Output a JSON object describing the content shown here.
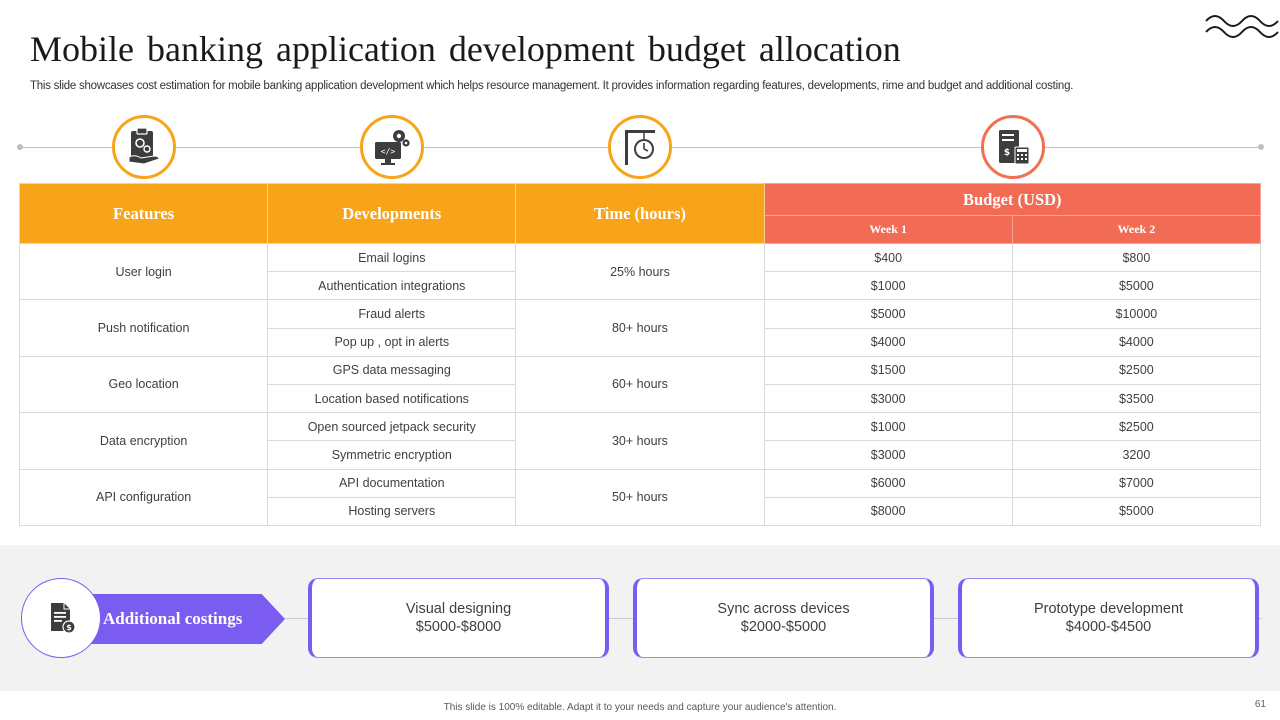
{
  "header": {
    "title": "Mobile banking application development budget allocation",
    "subtitle": "This slide showcases cost estimation for mobile banking application development which helps resource management. It provides information regarding features, developments, rime and budget and additional costing."
  },
  "table": {
    "headers": {
      "features": "Features",
      "developments": "Developments",
      "time": "Time (hours)",
      "budget": "Budget (USD)",
      "week1": "Week 1",
      "week2": "Week 2"
    },
    "groups": [
      {
        "feature": "User login",
        "time": "25% hours",
        "rows": [
          {
            "dev": "Email logins",
            "w1": "$400",
            "w2": "$800"
          },
          {
            "dev": "Authentication integrations",
            "w1": "$1000",
            "w2": "$5000"
          }
        ]
      },
      {
        "feature": "Push notification",
        "time": "80+ hours",
        "rows": [
          {
            "dev": "Fraud alerts",
            "w1": "$5000",
            "w2": "$10000"
          },
          {
            "dev": "Pop up , opt in alerts",
            "w1": "$4000",
            "w2": "$4000"
          }
        ]
      },
      {
        "feature": "Geo location",
        "time": "60+ hours",
        "rows": [
          {
            "dev": "GPS data messaging",
            "w1": "$1500",
            "w2": "$2500"
          },
          {
            "dev": "Location based notifications",
            "w1": "$3000",
            "w2": "$3500"
          }
        ]
      },
      {
        "feature": "Data encryption",
        "time": "30+ hours",
        "rows": [
          {
            "dev": "Open sourced jetpack security",
            "w1": "$1000",
            "w2": "$2500"
          },
          {
            "dev": "Symmetric encryption",
            "w1": "$3000",
            "w2": "3200"
          }
        ]
      },
      {
        "feature": "API configuration",
        "time": "50+ hours",
        "rows": [
          {
            "dev": "API documentation",
            "w1": "$6000",
            "w2": "$7000"
          },
          {
            "dev": "Hosting servers",
            "w1": "$8000",
            "w2": "$5000"
          }
        ]
      }
    ]
  },
  "additional": {
    "label": "Additional costings",
    "items": [
      {
        "name": "Visual designing",
        "range": "$5000-$8000"
      },
      {
        "name": "Sync across devices",
        "range": "$2000-$5000"
      },
      {
        "name": "Prototype development",
        "range": "$4000-$4500"
      }
    ]
  },
  "icons": [
    "clipboard-gear-icon",
    "code-monitor-icon",
    "signpost-clock-icon",
    "calculator-receipt-icon",
    "document-dollar-icon"
  ],
  "colors": {
    "orange": "#f7a41a",
    "red": "#f26b55",
    "purple": "#7b5cf0"
  },
  "footer": {
    "text": "This slide is 100% editable. Adapt it to your needs and capture your audience's attention.",
    "page": "61"
  }
}
